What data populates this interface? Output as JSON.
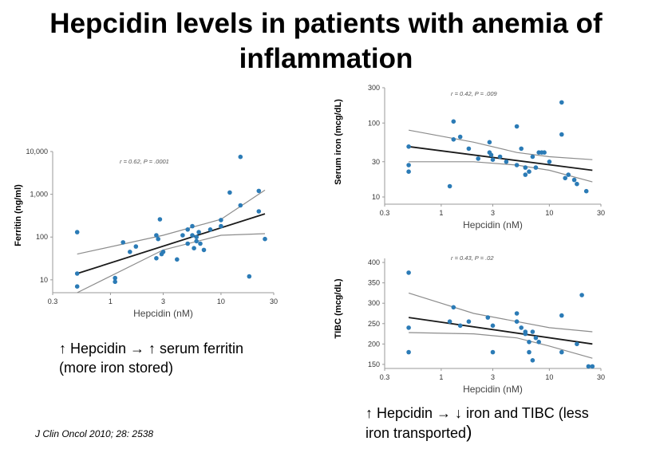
{
  "title": "Hepcidin levels in patients with anemia of inflammation",
  "captions": {
    "left_line1": "↑ Hepcidin → ↑ serum ferritin",
    "left_line2": "(more iron stored)",
    "right_line1": "↑ Hepcidin → ↓ iron and TIBC (less",
    "right_line2": "iron transported"
  },
  "citation": "J Clin Oncol 2010; 28: 2538",
  "chart_data": [
    {
      "id": "ferritin",
      "type": "scatter",
      "title": "",
      "annotation": "r = 0.62, P = .0001",
      "xlabel": "Hepcidin (nM)",
      "ylabel": "Ferritin (ng/ml)",
      "xscale": "log",
      "yscale": "log",
      "xlim": [
        0.3,
        30
      ],
      "ylim": [
        5,
        10000
      ],
      "xticks": [
        0.3,
        1,
        3,
        10,
        30
      ],
      "xtick_labels": [
        "0.3",
        "1",
        "3",
        "10",
        "30"
      ],
      "yticks": [
        10,
        100,
        1000,
        10000
      ],
      "ytick_labels": [
        "10",
        "100",
        "1,000",
        "10,000"
      ],
      "points": [
        [
          0.5,
          130
        ],
        [
          0.5,
          14
        ],
        [
          0.5,
          7
        ],
        [
          1.1,
          11
        ],
        [
          1.1,
          9
        ],
        [
          1.3,
          75
        ],
        [
          1.5,
          45
        ],
        [
          1.7,
          60
        ],
        [
          2.6,
          110
        ],
        [
          2.7,
          90
        ],
        [
          2.8,
          260
        ],
        [
          2.9,
          40
        ],
        [
          2.6,
          32
        ],
        [
          3.0,
          45
        ],
        [
          4.0,
          30
        ],
        [
          4.5,
          110
        ],
        [
          5,
          150
        ],
        [
          5,
          70
        ],
        [
          5.5,
          180
        ],
        [
          5.5,
          110
        ],
        [
          5.7,
          55
        ],
        [
          6,
          100
        ],
        [
          6,
          80
        ],
        [
          6.3,
          130
        ],
        [
          6.5,
          70
        ],
        [
          7,
          50
        ],
        [
          8,
          150
        ],
        [
          10,
          250
        ],
        [
          10,
          180
        ],
        [
          12,
          1100
        ],
        [
          15,
          7500
        ],
        [
          15,
          550
        ],
        [
          18,
          12
        ],
        [
          22,
          1200
        ],
        [
          22,
          400
        ],
        [
          25,
          90
        ]
      ],
      "fit": [
        [
          0.5,
          14
        ],
        [
          25,
          350
        ]
      ],
      "ci_upper": [
        [
          0.5,
          40
        ],
        [
          3,
          110
        ],
        [
          10,
          260
        ],
        [
          25,
          1250
        ]
      ],
      "ci_lower": [
        [
          0.5,
          5
        ],
        [
          3,
          50
        ],
        [
          10,
          110
        ],
        [
          25,
          120
        ]
      ]
    },
    {
      "id": "serum_iron",
      "type": "scatter",
      "title": "",
      "annotation": "r = 0.42, P = .009",
      "xlabel": "Hepcidin (nM)",
      "ylabel": "Serum iron (mcg/dL)",
      "xscale": "log",
      "yscale": "log",
      "xlim": [
        0.3,
        30
      ],
      "ylim": [
        8,
        300
      ],
      "xticks": [
        0.3,
        1,
        3,
        10,
        30
      ],
      "xtick_labels": [
        "0.3",
        "1",
        "3",
        "10",
        "30"
      ],
      "yticks": [
        10,
        30,
        100,
        300
      ],
      "ytick_labels": [
        "10",
        "30",
        "100",
        "300"
      ],
      "points": [
        [
          0.5,
          48
        ],
        [
          0.5,
          27
        ],
        [
          0.5,
          22
        ],
        [
          1.2,
          14
        ],
        [
          1.3,
          105
        ],
        [
          1.3,
          60
        ],
        [
          1.5,
          65
        ],
        [
          1.8,
          45
        ],
        [
          2.2,
          33
        ],
        [
          2.8,
          40
        ],
        [
          2.8,
          55
        ],
        [
          2.9,
          37
        ],
        [
          3,
          32
        ],
        [
          3.5,
          35
        ],
        [
          4,
          30
        ],
        [
          5,
          90
        ],
        [
          5,
          27
        ],
        [
          5.5,
          45
        ],
        [
          6,
          25
        ],
        [
          6,
          20
        ],
        [
          6.5,
          22
        ],
        [
          7,
          35
        ],
        [
          7.5,
          25
        ],
        [
          8,
          40
        ],
        [
          8.5,
          40
        ],
        [
          9,
          40
        ],
        [
          10,
          30
        ],
        [
          13,
          190
        ],
        [
          13,
          70
        ],
        [
          14,
          18
        ],
        [
          15,
          20
        ],
        [
          17,
          17
        ],
        [
          18,
          15
        ],
        [
          22,
          12
        ]
      ],
      "fit": [
        [
          0.5,
          48
        ],
        [
          25,
          23
        ]
      ],
      "ci_upper": [
        [
          0.5,
          80
        ],
        [
          2,
          55
        ],
        [
          5,
          40
        ],
        [
          10,
          35
        ],
        [
          25,
          32
        ]
      ],
      "ci_lower": [
        [
          0.5,
          30
        ],
        [
          2,
          30
        ],
        [
          5,
          27
        ],
        [
          10,
          23
        ],
        [
          25,
          16
        ]
      ]
    },
    {
      "id": "tibc",
      "type": "scatter",
      "title": "",
      "annotation": "r = 0.43, P = .02",
      "xlabel": "Hepcidin (nM)",
      "ylabel": "TIBC (mcg/dL)",
      "xscale": "log",
      "yscale": "linear",
      "xlim": [
        0.3,
        30
      ],
      "ylim": [
        140,
        410
      ],
      "xticks": [
        0.3,
        1,
        3,
        10,
        30
      ],
      "xtick_labels": [
        "0.3",
        "1",
        "3",
        "10",
        "30"
      ],
      "yticks": [
        150,
        200,
        250,
        300,
        350,
        400
      ],
      "ytick_labels": [
        "150",
        "200",
        "250",
        "300",
        "350",
        "400"
      ],
      "points": [
        [
          0.5,
          375
        ],
        [
          0.5,
          240
        ],
        [
          0.5,
          180
        ],
        [
          1.2,
          255
        ],
        [
          1.3,
          290
        ],
        [
          1.5,
          245
        ],
        [
          1.8,
          255
        ],
        [
          2.7,
          265
        ],
        [
          3,
          245
        ],
        [
          3,
          180
        ],
        [
          5,
          275
        ],
        [
          5,
          255
        ],
        [
          5.5,
          240
        ],
        [
          6,
          230
        ],
        [
          6,
          225
        ],
        [
          6.5,
          205
        ],
        [
          6.5,
          180
        ],
        [
          7,
          160
        ],
        [
          7,
          230
        ],
        [
          7.5,
          215
        ],
        [
          8,
          205
        ],
        [
          13,
          270
        ],
        [
          13,
          180
        ],
        [
          18,
          200
        ],
        [
          20,
          320
        ],
        [
          23,
          145
        ],
        [
          25,
          145
        ]
      ],
      "fit": [
        [
          0.5,
          265
        ],
        [
          25,
          200
        ]
      ],
      "ci_upper": [
        [
          0.5,
          325
        ],
        [
          2,
          275
        ],
        [
          5,
          255
        ],
        [
          10,
          240
        ],
        [
          25,
          230
        ]
      ],
      "ci_lower": [
        [
          0.5,
          228
        ],
        [
          2,
          225
        ],
        [
          5,
          215
        ],
        [
          10,
          195
        ],
        [
          25,
          165
        ]
      ]
    }
  ]
}
